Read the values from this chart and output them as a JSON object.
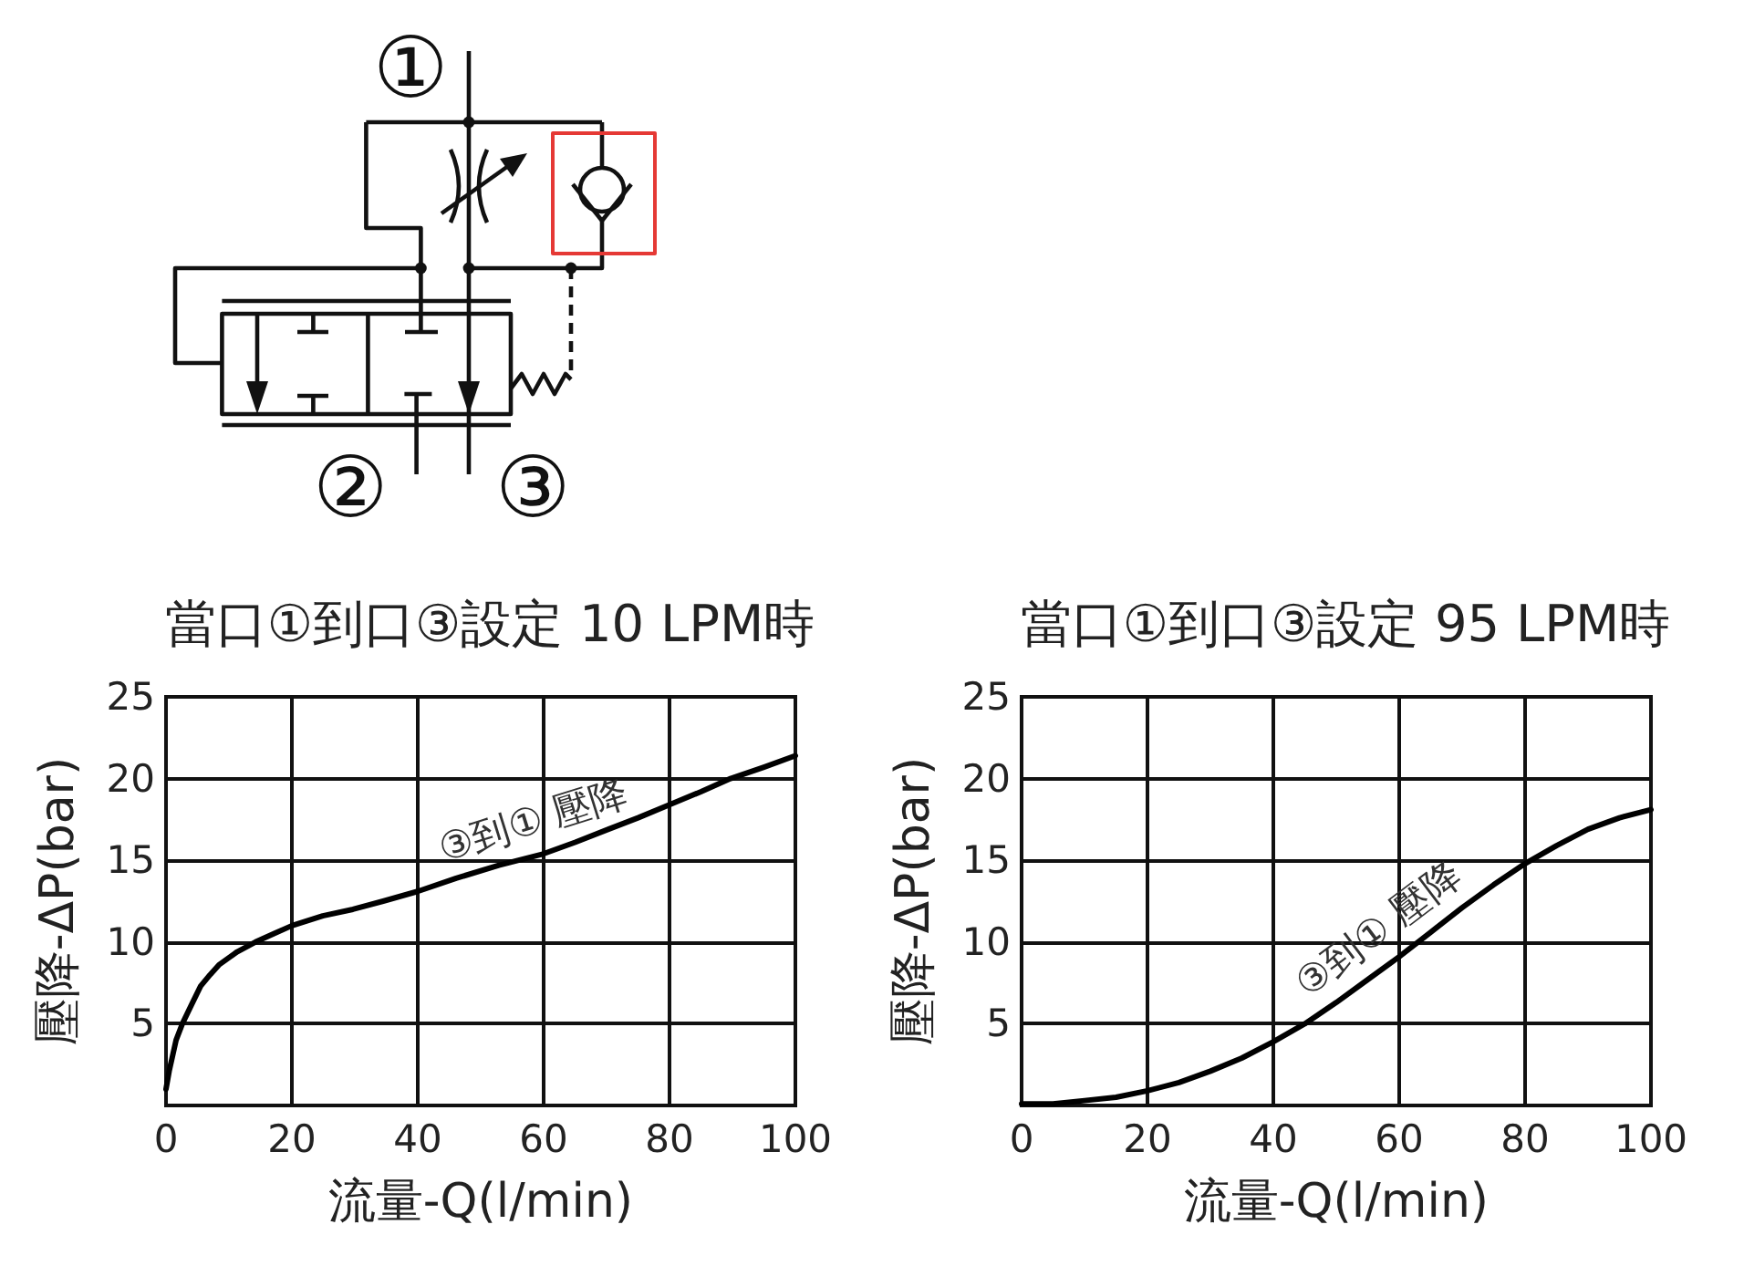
{
  "chart_data": [
    {
      "type": "other",
      "annotations": [
        "①",
        "②",
        "③"
      ]
    },
    {
      "type": "line",
      "title": "當口①到口③設定 10 LPM時",
      "xlabel": "流量-Q(l/min)",
      "ylabel": "壓降-ΔP(bar)",
      "series": [
        {
          "name": "③到① 壓降",
          "color": "#000000",
          "x": [
            0,
            0.5,
            1.6,
            2.6,
            4.1,
            5.5,
            7,
            8.4,
            11.3,
            14.2,
            17.1,
            20,
            24.9,
            29.7,
            34.5,
            40,
            46.1,
            52.9,
            60,
            65,
            70.3,
            75,
            80,
            85,
            89.7,
            95,
            100
          ],
          "values": [
            1.0,
            2.1,
            4.0,
            5.0,
            6.2,
            7.3,
            8.0,
            8.6,
            9.4,
            10.0,
            10.5,
            11.0,
            11.6,
            12.0,
            12.5,
            13.1,
            13.9,
            14.7,
            15.4,
            16.1,
            16.9,
            17.6,
            18.4,
            19.2,
            20.0,
            20.7,
            21.4
          ]
        }
      ],
      "xlim": [
        0,
        100
      ],
      "xticks": [
        0,
        20,
        40,
        60,
        80,
        100
      ],
      "ylim": [
        0,
        25
      ],
      "yticks": [
        {
          "value": 0,
          "label": null
        },
        5,
        10,
        15,
        20,
        25
      ],
      "grid": true,
      "marker": "none",
      "line_style": "solid"
    },
    {
      "type": "line",
      "title": "當口①到口③設定 95 LPM時",
      "xlabel": "流量-Q(l/min)",
      "ylabel": "壓降-ΔP(bar)",
      "series": [
        {
          "name": "③到① 壓降",
          "color": "#000000",
          "x": [
            0,
            5,
            10,
            15,
            20,
            25,
            30,
            35,
            40,
            45,
            50,
            55,
            60,
            65,
            70,
            75,
            80,
            85,
            90,
            95,
            100
          ],
          "values": [
            0.1,
            0.1,
            0.3,
            0.5,
            0.9,
            1.4,
            2.1,
            2.9,
            3.9,
            5.0,
            6.3,
            7.7,
            9.1,
            10.6,
            12.1,
            13.5,
            14.8,
            15.9,
            16.9,
            17.6,
            18.1
          ]
        }
      ],
      "xlim": [
        0,
        100
      ],
      "xticks": [
        0,
        20,
        40,
        60,
        80,
        100
      ],
      "ylim": [
        0,
        25
      ],
      "yticks": [
        {
          "value": 0,
          "label": null
        },
        5,
        10,
        15,
        20,
        25
      ],
      "grid": true,
      "marker": "none",
      "line_style": "solid"
    }
  ]
}
